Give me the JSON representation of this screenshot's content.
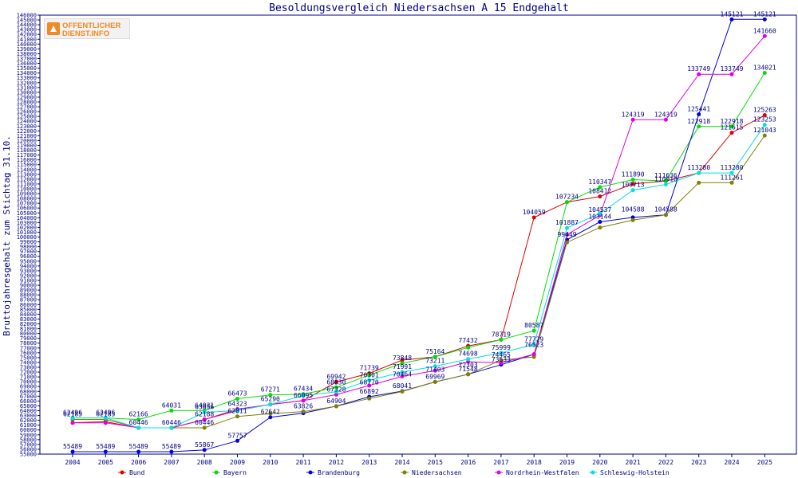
{
  "chart_data": {
    "type": "line",
    "title": "Besoldungsvergleich Niedersachsen A 15 Endgehalt",
    "ylabel": "Bruttojahresgehalt zum Stichtag 31.10.",
    "xlabel": "",
    "x": [
      "2004",
      "2005",
      "2006",
      "2007",
      "2008",
      "2009",
      "2010",
      "2011",
      "2012",
      "2013",
      "2014",
      "2015",
      "2016",
      "2017",
      "2018",
      "2019",
      "2020",
      "2021",
      "2022",
      "2023",
      "2024",
      "2025"
    ],
    "ylim": [
      55000,
      146000
    ],
    "ytick_step": 1000,
    "grid": false,
    "legend_position": "bottom",
    "series": [
      {
        "name": "Bund",
        "color": "#e00000",
        "values": [
          61500,
          61700,
          60446,
          60446,
          62188,
          64030,
          65300,
          66095,
          69942,
          71739,
          74484,
          75164,
          77432,
          78719,
          104059,
          107232,
          108412,
          111012,
          111612,
          113284,
          121615,
          125263
        ]
      },
      {
        "name": "Bayern",
        "color": "#00e000",
        "values": [
          62496,
          62496,
          62166,
          64031,
          64031,
          66473,
          67271,
          67434,
          68830,
          71391,
          73848,
          75164,
          77092,
          78719,
          80587,
          107234,
          110347,
          111890,
          111636,
          122918,
          122918,
          134021
        ]
      },
      {
        "name": "Brandenburg",
        "color": "#0000e0",
        "values": [
          55489,
          55489,
          55489,
          55489,
          55867,
          57757,
          62642,
          63491,
          64940,
          66892,
          68041,
          69969,
          71548,
          73533,
          75682,
          99449,
          103144,
          104066,
          104588,
          125441,
          145121,
          145121
        ]
      },
      {
        "name": "Niedersachsen",
        "color": "#808000",
        "values": [
          62185,
          62185,
          60446,
          60446,
          60446,
          62811,
          63380,
          63826,
          64904,
          66523,
          67964,
          69969,
          71548,
          74465,
          75152,
          98898,
          101966,
          103500,
          104588,
          111261,
          111261,
          121043
        ]
      },
      {
        "name": "Nordrhein-Westfalen",
        "color": "#e000e0",
        "values": [
          61468,
          61468,
          60446,
          60446,
          62146,
          64323,
          65290,
          66095,
          67328,
          69212,
          71101,
          72303,
          74141,
          73933,
          75697,
          100487,
          104537,
          124319,
          124319,
          133749,
          133749,
          141660
        ]
      },
      {
        "name": "Schleswig-Holstein",
        "color": "#00e0e0",
        "values": [
          62496,
          62496,
          60446,
          60446,
          63656,
          64030,
          65299,
          67124,
          67921,
          70301,
          71991,
          73211,
          74698,
          75999,
          77729,
          101887,
          104857,
          109713,
          110910,
          113280,
          113280,
          123253
        ]
      }
    ],
    "data_labels": [
      {
        "x": "2004",
        "y": 62496,
        "text": "62496"
      },
      {
        "x": "2004",
        "y": 62185,
        "text": "62185"
      },
      {
        "x": "2004",
        "y": 55489,
        "text": "55489"
      },
      {
        "x": "2005",
        "y": 62496,
        "text": "62496"
      },
      {
        "x": "2005",
        "y": 62185,
        "text": "62185"
      },
      {
        "x": "2005",
        "y": 55489,
        "text": "55489"
      },
      {
        "x": "2006",
        "y": 62166,
        "text": "62166"
      },
      {
        "x": "2006",
        "y": 60446,
        "text": "60446"
      },
      {
        "x": "2006",
        "y": 55489,
        "text": "55489"
      },
      {
        "x": "2007",
        "y": 64031,
        "text": "64031"
      },
      {
        "x": "2007",
        "y": 60446,
        "text": "60446"
      },
      {
        "x": "2007",
        "y": 55489,
        "text": "55489"
      },
      {
        "x": "2008",
        "y": 64031,
        "text": "64031"
      },
      {
        "x": "2008",
        "y": 63656,
        "text": "63656"
      },
      {
        "x": "2008",
        "y": 62188,
        "text": "62188"
      },
      {
        "x": "2008",
        "y": 60446,
        "text": "60446"
      },
      {
        "x": "2008",
        "y": 55867,
        "text": "55867"
      },
      {
        "x": "2009",
        "y": 66473,
        "text": "66473"
      },
      {
        "x": "2009",
        "y": 64323,
        "text": "64323"
      },
      {
        "x": "2009",
        "y": 62811,
        "text": "62811"
      },
      {
        "x": "2009",
        "y": 57757,
        "text": "57757"
      },
      {
        "x": "2010",
        "y": 67271,
        "text": "67271"
      },
      {
        "x": "2010",
        "y": 65290,
        "text": "65290"
      },
      {
        "x": "2010",
        "y": 62642,
        "text": "62642"
      },
      {
        "x": "2011",
        "y": 67434,
        "text": "67434"
      },
      {
        "x": "2011",
        "y": 66095,
        "text": "66095"
      },
      {
        "x": "2011",
        "y": 63826,
        "text": "63826"
      },
      {
        "x": "2012",
        "y": 69942,
        "text": "69942"
      },
      {
        "x": "2012",
        "y": 68830,
        "text": "68830"
      },
      {
        "x": "2012",
        "y": 67328,
        "text": "67328"
      },
      {
        "x": "2012",
        "y": 64904,
        "text": "64904"
      },
      {
        "x": "2013",
        "y": 71739,
        "text": "71739"
      },
      {
        "x": "2013",
        "y": 70301,
        "text": "70301"
      },
      {
        "x": "2013",
        "y": 68770,
        "text": "68770"
      },
      {
        "x": "2013",
        "y": 66892,
        "text": "66892"
      },
      {
        "x": "2014",
        "y": 73848,
        "text": "73848"
      },
      {
        "x": "2014",
        "y": 71991,
        "text": "71991"
      },
      {
        "x": "2014",
        "y": 70464,
        "text": "70464"
      },
      {
        "x": "2014",
        "y": 68041,
        "text": "68041"
      },
      {
        "x": "2015",
        "y": 75164,
        "text": "75164"
      },
      {
        "x": "2015",
        "y": 73211,
        "text": "73211"
      },
      {
        "x": "2015",
        "y": 71403,
        "text": "71403"
      },
      {
        "x": "2015",
        "y": 69969,
        "text": "69969"
      },
      {
        "x": "2016",
        "y": 77432,
        "text": "77432"
      },
      {
        "x": "2016",
        "y": 74698,
        "text": "74698"
      },
      {
        "x": "2016",
        "y": 72303,
        "text": "72303"
      },
      {
        "x": "2016",
        "y": 71548,
        "text": "71548"
      },
      {
        "x": "2017",
        "y": 78719,
        "text": "78719"
      },
      {
        "x": "2017",
        "y": 75999,
        "text": "75999"
      },
      {
        "x": "2017",
        "y": 74465,
        "text": "74465"
      },
      {
        "x": "2017",
        "y": 73533,
        "text": "73533"
      },
      {
        "x": "2018",
        "y": 104059,
        "text": "104059"
      },
      {
        "x": "2018",
        "y": 80587,
        "text": "80587"
      },
      {
        "x": "2018",
        "y": 77729,
        "text": "77729"
      },
      {
        "x": "2018",
        "y": 76523,
        "text": "76523"
      },
      {
        "x": "2019",
        "y": 107234,
        "text": "107234"
      },
      {
        "x": "2019",
        "y": 101887,
        "text": "101887"
      },
      {
        "x": "2019",
        "y": 99449,
        "text": "99449"
      },
      {
        "x": "2020",
        "y": 110347,
        "text": "110347"
      },
      {
        "x": "2020",
        "y": 108412,
        "text": "108412"
      },
      {
        "x": "2020",
        "y": 104537,
        "text": "104537"
      },
      {
        "x": "2020",
        "y": 103144,
        "text": "103144"
      },
      {
        "x": "2021",
        "y": 124319,
        "text": "124319"
      },
      {
        "x": "2021",
        "y": 111890,
        "text": "111890"
      },
      {
        "x": "2021",
        "y": 109713,
        "text": "109713"
      },
      {
        "x": "2021",
        "y": 104588,
        "text": "104588"
      },
      {
        "x": "2022",
        "y": 124319,
        "text": "124319"
      },
      {
        "x": "2022",
        "y": 111636,
        "text": "111636"
      },
      {
        "x": "2022",
        "y": 110910,
        "text": "110910"
      },
      {
        "x": "2022",
        "y": 104588,
        "text": "104588"
      },
      {
        "x": "2023",
        "y": 133749,
        "text": "133749"
      },
      {
        "x": "2023",
        "y": 125441,
        "text": "125441"
      },
      {
        "x": "2023",
        "y": 122918,
        "text": "122918"
      },
      {
        "x": "2023",
        "y": 113280,
        "text": "113280"
      },
      {
        "x": "2024",
        "y": 145121,
        "text": "145121"
      },
      {
        "x": "2024",
        "y": 133749,
        "text": "133749"
      },
      {
        "x": "2024",
        "y": 122918,
        "text": "122918"
      },
      {
        "x": "2024",
        "y": 121615,
        "text": "121615"
      },
      {
        "x": "2024",
        "y": 113280,
        "text": "113280"
      },
      {
        "x": "2024",
        "y": 111261,
        "text": "111261"
      },
      {
        "x": "2025",
        "y": 145121,
        "text": "145121"
      },
      {
        "x": "2025",
        "y": 141660,
        "text": "141660"
      },
      {
        "x": "2025",
        "y": 134021,
        "text": "134021"
      },
      {
        "x": "2025",
        "y": 125263,
        "text": "125263"
      },
      {
        "x": "2025",
        "y": 123253,
        "text": "123253"
      },
      {
        "x": "2025",
        "y": 121043,
        "text": "121043"
      }
    ]
  },
  "logo": {
    "line1": "OFFENTLICHER",
    "line2": "DIENST.INFO"
  }
}
